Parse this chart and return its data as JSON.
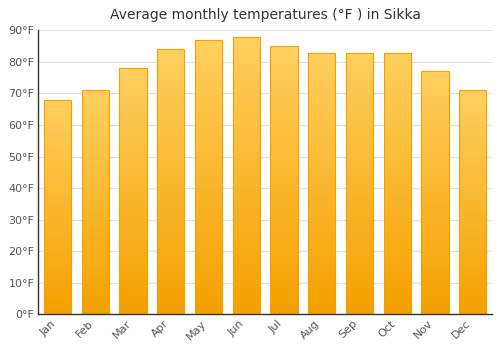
{
  "title": "Average monthly temperatures (°F ) in Sikka",
  "months": [
    "Jan",
    "Feb",
    "Mar",
    "Apr",
    "May",
    "Jun",
    "Jul",
    "Aug",
    "Sep",
    "Oct",
    "Nov",
    "Dec"
  ],
  "values": [
    68,
    71,
    78,
    84,
    87,
    88,
    85,
    83,
    83,
    83,
    77,
    71
  ],
  "bar_color_light": "#FFD060",
  "bar_color_dark": "#F5A000",
  "background_color": "#FFFFFF",
  "grid_color": "#E0E0E0",
  "spine_color": "#333333",
  "tick_color": "#555555",
  "title_color": "#333333",
  "ylim": [
    0,
    90
  ],
  "yticks": [
    0,
    10,
    20,
    30,
    40,
    50,
    60,
    70,
    80,
    90
  ],
  "ytick_labels": [
    "0°F",
    "10°F",
    "20°F",
    "30°F",
    "40°F",
    "50°F",
    "60°F",
    "70°F",
    "80°F",
    "90°F"
  ],
  "title_fontsize": 10,
  "tick_fontsize": 8,
  "figsize": [
    5.0,
    3.5
  ],
  "dpi": 100,
  "bar_width": 0.72
}
